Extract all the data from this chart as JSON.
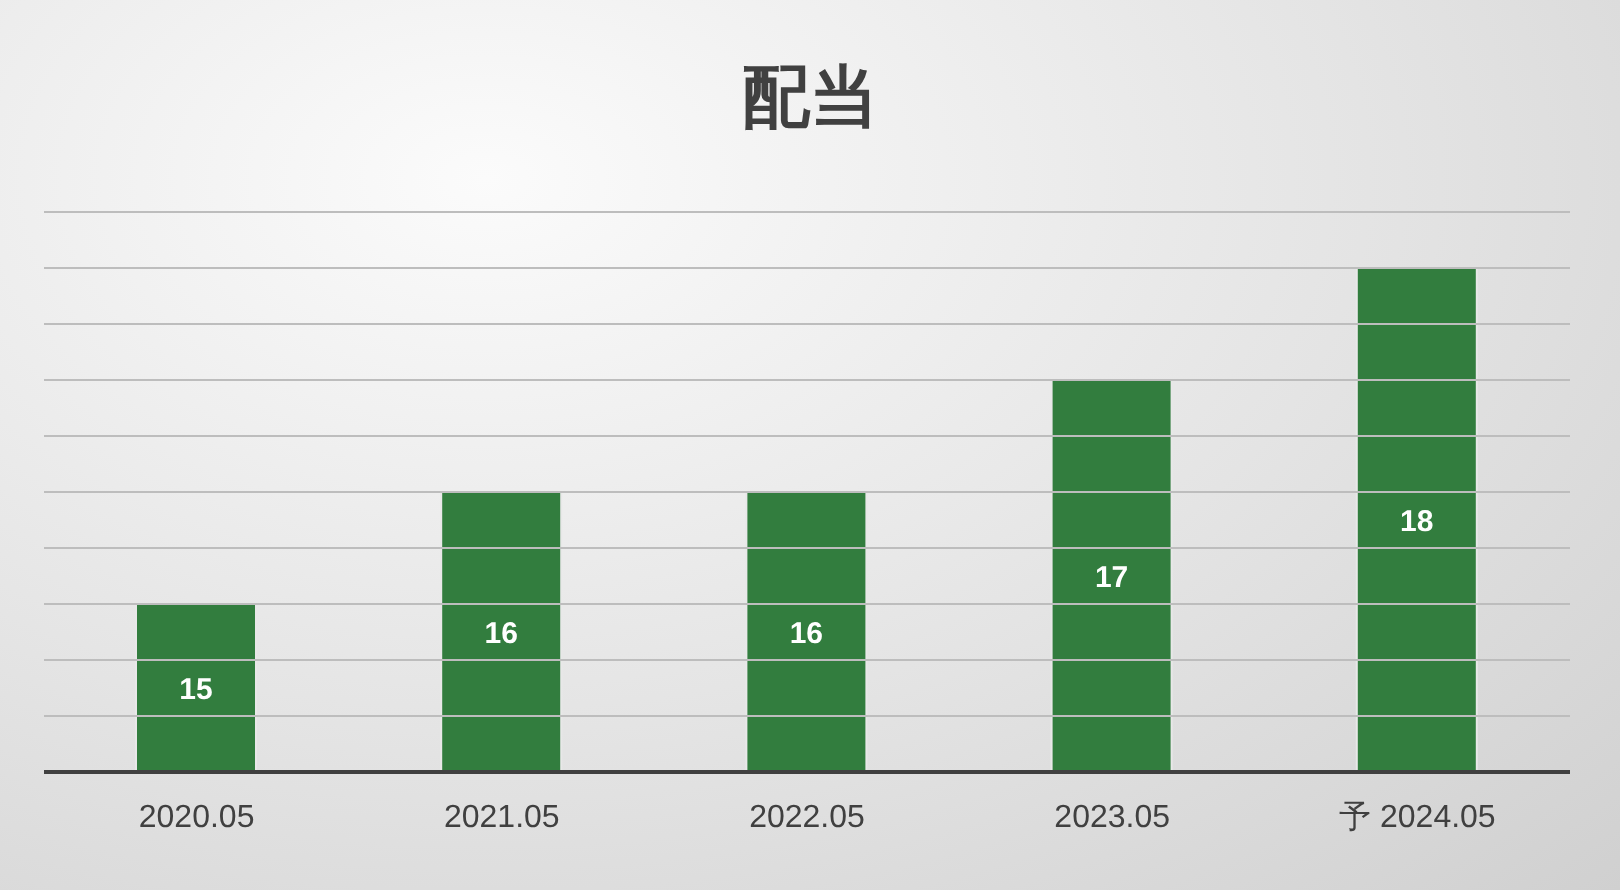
{
  "chart_data": {
    "type": "bar",
    "title": "配当",
    "categories": [
      "2020.05",
      "2021.05",
      "2022.05",
      "2023.05",
      "予 2024.05"
    ],
    "values": [
      15,
      16,
      16,
      17,
      18
    ],
    "color": "#327d3e",
    "data_labels": true,
    "ylim": [
      13.5,
      18.5
    ],
    "yticks": [
      {
        "value": 13.5,
        "label": null
      },
      {
        "value": 14,
        "label": null
      },
      {
        "value": 14.5,
        "label": null
      },
      {
        "value": 15,
        "label": null
      },
      {
        "value": 15.5,
        "label": null
      },
      {
        "value": 16,
        "label": null
      },
      {
        "value": 16.5,
        "label": null
      },
      {
        "value": 17,
        "label": null
      },
      {
        "value": 17.5,
        "label": null
      },
      {
        "value": 18,
        "label": null
      },
      {
        "value": 18.5,
        "label": null
      }
    ],
    "grid": "y",
    "tick_labels": "x",
    "legend": false
  }
}
